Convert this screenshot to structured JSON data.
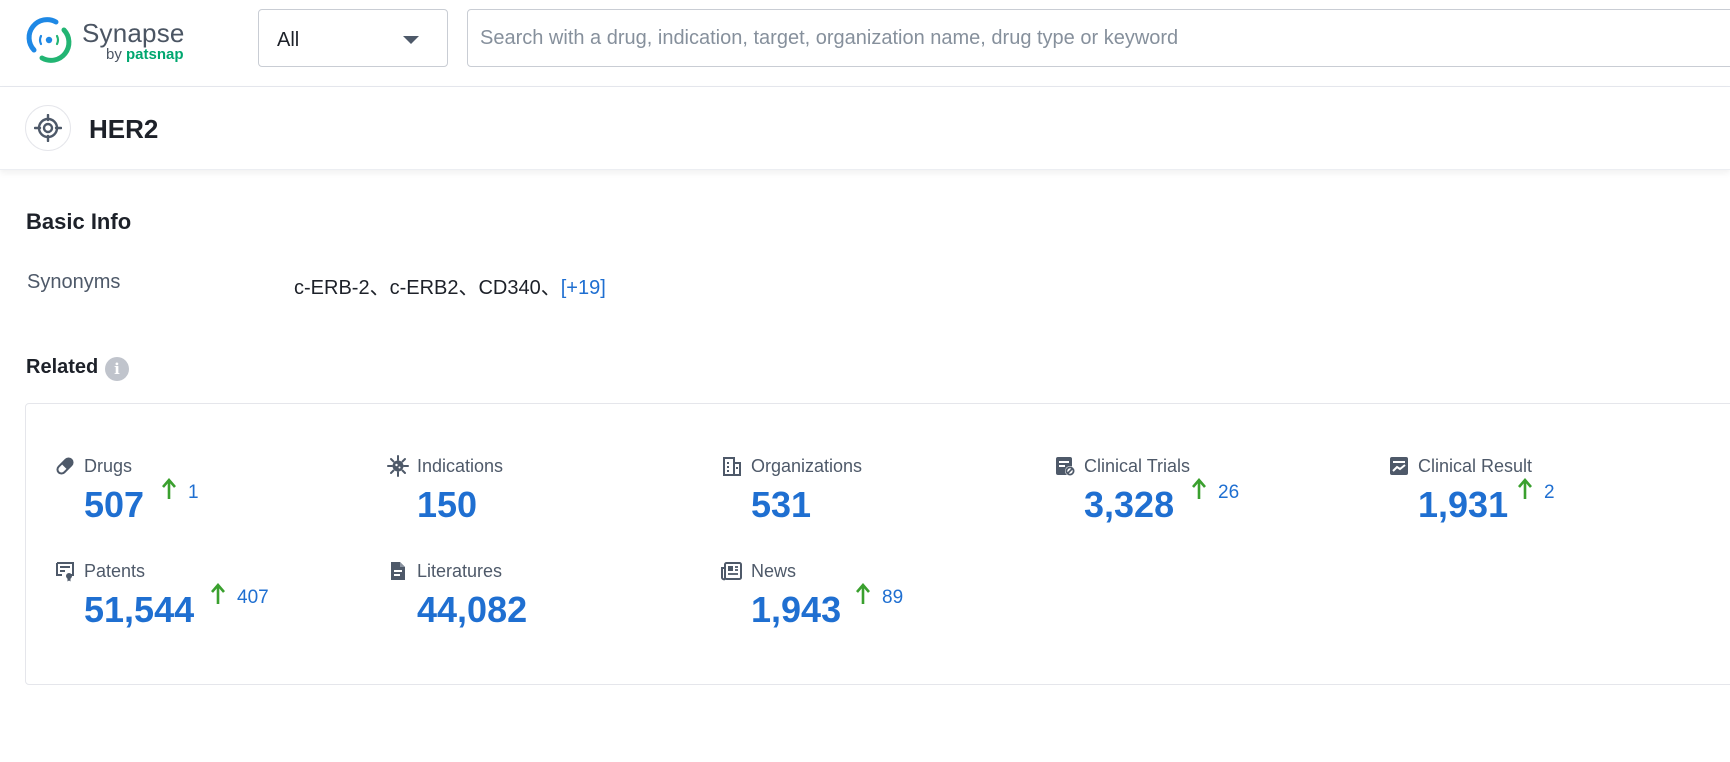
{
  "header": {
    "logo_text": "Synapse",
    "logo_sub_prefix": "by ",
    "logo_sub_brand": "patsnap",
    "scope_select": {
      "value": "All"
    },
    "search": {
      "placeholder": "Search with a drug, indication, target, organization name, drug type or keyword"
    }
  },
  "entity": {
    "title": "HER2",
    "icon": "target-icon"
  },
  "basic_info": {
    "title": "Basic Info",
    "synonyms_label": "Synonyms",
    "synonyms_values": "c-ERB-2、c-ERB2、CD340、",
    "synonyms_more": "[+19]"
  },
  "related": {
    "title": "Related",
    "info_icon": "info-icon",
    "stats": {
      "drugs": {
        "label": "Drugs",
        "value": "507",
        "delta": "1",
        "icon": "pill-icon"
      },
      "indications": {
        "label": "Indications",
        "value": "150",
        "icon": "virus-icon"
      },
      "organizations": {
        "label": "Organizations",
        "value": "531",
        "icon": "building-icon"
      },
      "clinical_trials": {
        "label": "Clinical Trials",
        "value": "3,328",
        "delta": "26",
        "icon": "clinical-trial-icon"
      },
      "clinical_result": {
        "label": "Clinical Result",
        "value": "1,931",
        "delta": "2",
        "icon": "clinical-result-icon"
      },
      "patents": {
        "label": "Patents",
        "value": "51,544",
        "delta": "407",
        "icon": "patent-icon"
      },
      "literatures": {
        "label": "Literatures",
        "value": "44,082",
        "icon": "document-icon"
      },
      "news": {
        "label": "News",
        "value": "1,943",
        "delta": "89",
        "icon": "newspaper-icon"
      }
    }
  },
  "colors": {
    "accent_blue": "#1f6fd1",
    "up_arrow_green": "#3aa02e",
    "brand_green": "#00a76f"
  }
}
